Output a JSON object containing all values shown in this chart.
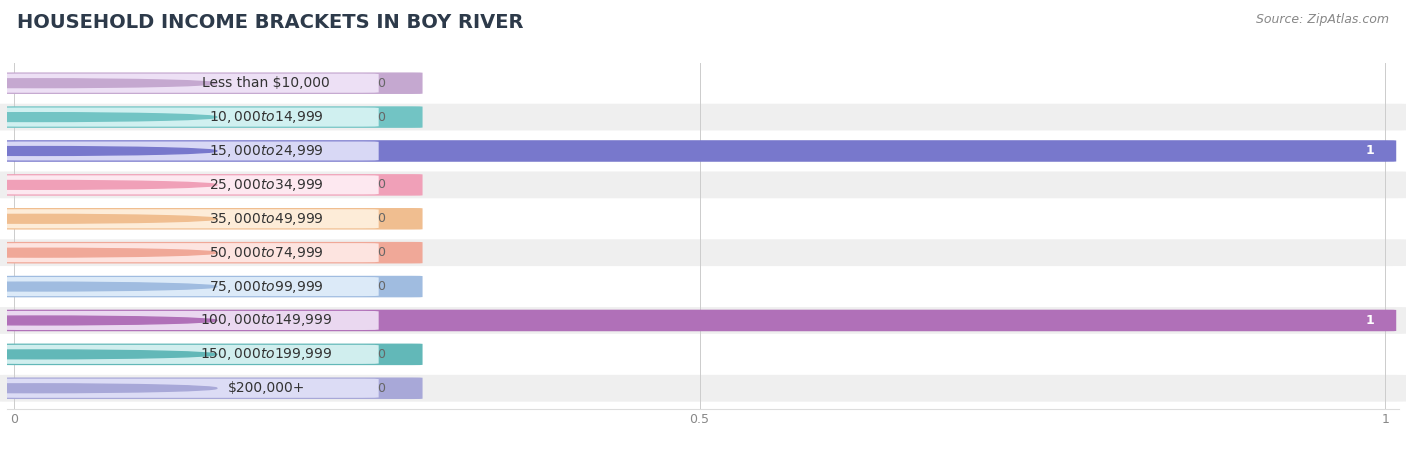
{
  "title": "HOUSEHOLD INCOME BRACKETS IN BOY RIVER",
  "source": "Source: ZipAtlas.com",
  "categories": [
    "Less than $10,000",
    "$10,000 to $14,999",
    "$15,000 to $24,999",
    "$25,000 to $34,999",
    "$35,000 to $49,999",
    "$50,000 to $74,999",
    "$75,000 to $99,999",
    "$100,000 to $149,999",
    "$150,000 to $199,999",
    "$200,000+"
  ],
  "values": [
    0,
    0,
    1,
    0,
    0,
    0,
    0,
    1,
    0,
    0
  ],
  "bar_colors": [
    "#c5a8d0",
    "#72c4c4",
    "#7878cc",
    "#f0a0b8",
    "#f0be90",
    "#f0a898",
    "#a0bce0",
    "#b070b8",
    "#62b8b8",
    "#a8a8d8"
  ],
  "label_bg_colors": [
    "#ede0f5",
    "#d0f0f0",
    "#d8d8f5",
    "#fde8f0",
    "#fdecd8",
    "#fde4e0",
    "#dceaf8",
    "#ead8f0",
    "#d0eeee",
    "#dcdcf5"
  ],
  "row_alt_colors": [
    "#ffffff",
    "#efefef"
  ],
  "xlim": [
    0,
    1
  ],
  "xticks": [
    0,
    0.5,
    1
  ],
  "background_color": "#ffffff",
  "title_color": "#2d3a4a",
  "title_fontsize": 14,
  "source_fontsize": 9,
  "label_fontsize": 10,
  "value_fontsize": 9,
  "value_color_inside": "#ffffff",
  "value_color_outside": "#666666"
}
